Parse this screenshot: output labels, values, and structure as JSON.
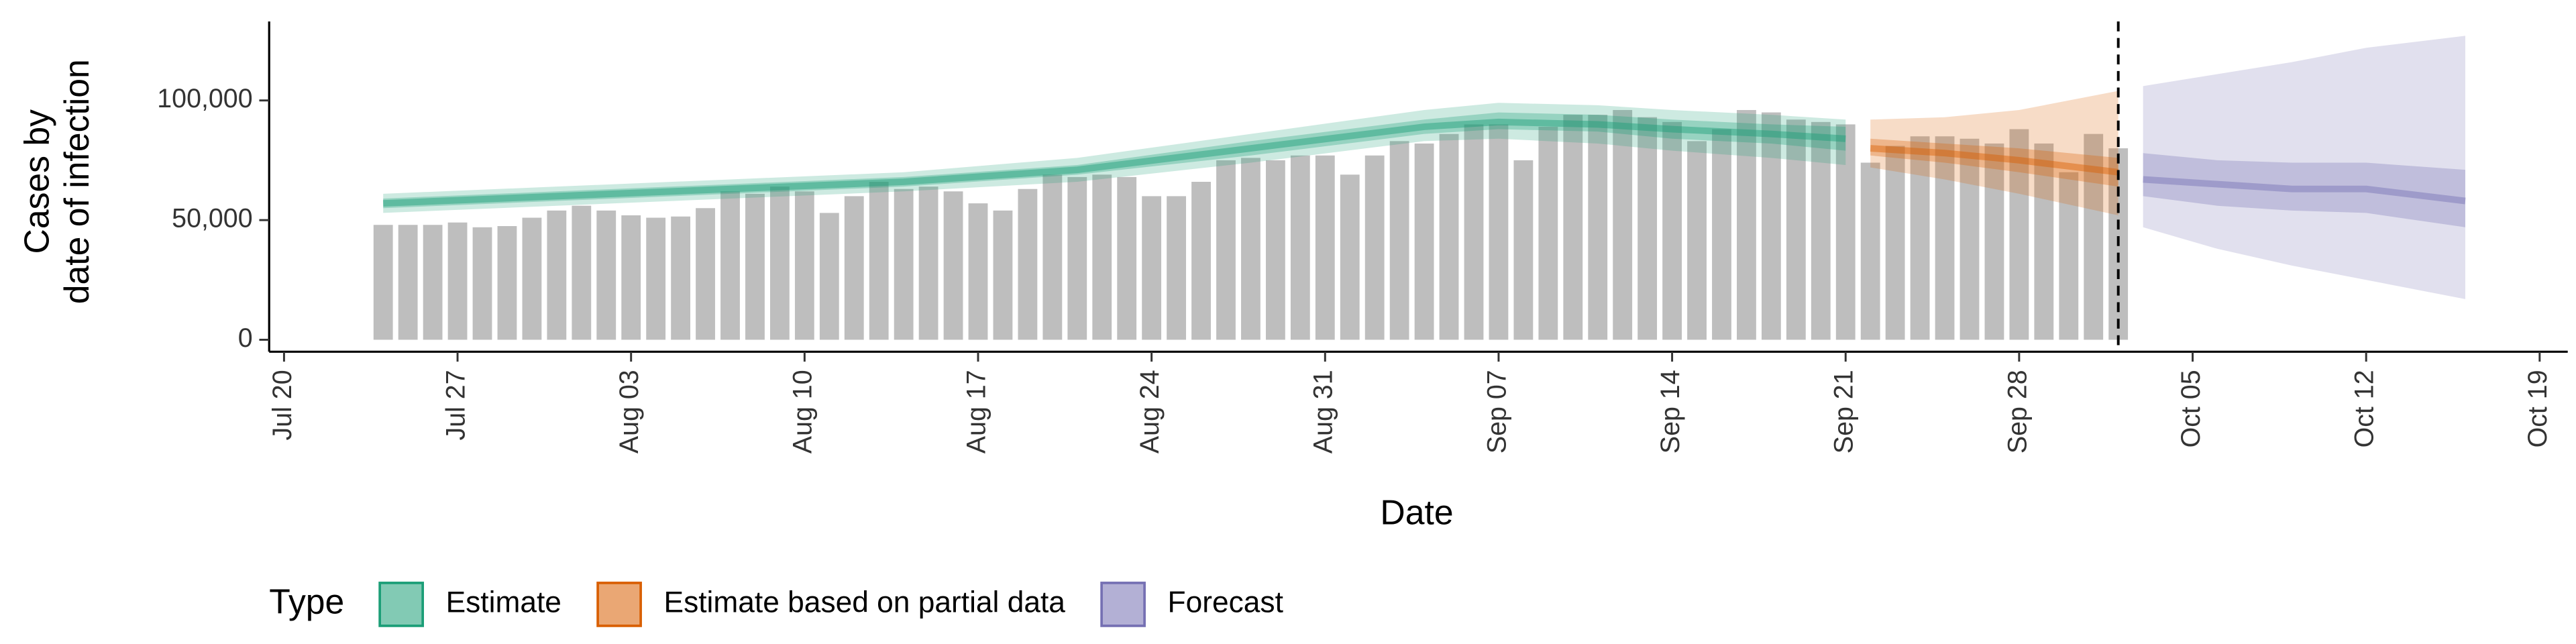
{
  "chart_data": {
    "type": "bar",
    "ylabel": [
      "Cases by",
      "date of infection"
    ],
    "xlabel": "Date",
    "legend_title": "Type",
    "xlim": [
      "Jul 19",
      "Oct 20"
    ],
    "xticks": [
      "Jul 20",
      "Jul 27",
      "Aug 03",
      "Aug 10",
      "Aug 17",
      "Aug 24",
      "Aug 31",
      "Sep 07",
      "Sep 14",
      "Sep 21",
      "Sep 28",
      "Oct 05",
      "Oct 12",
      "Oct 19"
    ],
    "ylim": [
      -5000,
      133000
    ],
    "yticks": [
      {
        "value": 0,
        "label": "0"
      },
      {
        "value": 50000,
        "label": "50,000"
      },
      {
        "value": 100000,
        "label": "100,000"
      }
    ],
    "reference_line": "Oct 02",
    "bars": {
      "color": "#bebebe",
      "x": [
        "Jul 24",
        "Jul 25",
        "Jul 26",
        "Jul 27",
        "Jul 28",
        "Jul 29",
        "Jul 30",
        "Jul 31",
        "Aug 01",
        "Aug 02",
        "Aug 03",
        "Aug 04",
        "Aug 05",
        "Aug 06",
        "Aug 07",
        "Aug 08",
        "Aug 09",
        "Aug 10",
        "Aug 11",
        "Aug 12",
        "Aug 13",
        "Aug 14",
        "Aug 15",
        "Aug 16",
        "Aug 17",
        "Aug 18",
        "Aug 19",
        "Aug 20",
        "Aug 21",
        "Aug 22",
        "Aug 23",
        "Aug 24",
        "Aug 25",
        "Aug 26",
        "Aug 27",
        "Aug 28",
        "Aug 29",
        "Aug 30",
        "Aug 31",
        "Sep 01",
        "Sep 02",
        "Sep 03",
        "Sep 04",
        "Sep 05",
        "Sep 06",
        "Sep 07",
        "Sep 08",
        "Sep 09",
        "Sep 10",
        "Sep 11",
        "Sep 12",
        "Sep 13",
        "Sep 14",
        "Sep 15",
        "Sep 16",
        "Sep 17",
        "Sep 18",
        "Sep 19",
        "Sep 20",
        "Sep 21",
        "Sep 22",
        "Sep 23",
        "Sep 24",
        "Sep 25",
        "Sep 26",
        "Sep 27",
        "Sep 28",
        "Sep 29",
        "Sep 30",
        "Oct 01",
        "Oct 02"
      ],
      "values": [
        48000,
        48000,
        48000,
        49000,
        47000,
        47500,
        51000,
        54000,
        56000,
        54000,
        52000,
        51000,
        51500,
        55000,
        62000,
        61000,
        64000,
        62000,
        53000,
        60000,
        66000,
        63000,
        64000,
        62000,
        57000,
        54000,
        63000,
        69000,
        68000,
        69000,
        68000,
        60000,
        60000,
        66000,
        75000,
        76000,
        75000,
        77000,
        77000,
        69000,
        77000,
        83000,
        82000,
        86000,
        90000,
        90000,
        75000,
        89000,
        94000,
        94000,
        96000,
        93000,
        91000,
        83000,
        88000,
        96000,
        95000,
        92000,
        91000,
        90000,
        74000,
        81000,
        85000,
        85000,
        84000,
        82000,
        88000,
        82000,
        70000,
        86000,
        80000
      ]
    },
    "series": [
      {
        "name": "Estimate",
        "color": "#1b9e77",
        "x": [
          "Jul 24",
          "Jul 31",
          "Aug 07",
          "Aug 14",
          "Aug 21",
          "Aug 28",
          "Sep 04",
          "Sep 07",
          "Sep 11",
          "Sep 14",
          "Sep 18",
          "Sep 21"
        ],
        "median": [
          57000,
          60000,
          63000,
          66000,
          71000,
          80000,
          89000,
          91000,
          90000,
          88000,
          86000,
          84000
        ],
        "lower": [
          53000,
          56000,
          59000,
          62000,
          66000,
          74000,
          83000,
          84000,
          82000,
          79000,
          76000,
          73000
        ],
        "upper": [
          61000,
          64000,
          67000,
          70000,
          76000,
          86000,
          96000,
          99000,
          98000,
          96000,
          94000,
          92000
        ],
        "lower_inner": [
          55000,
          58000,
          61000,
          64000,
          69000,
          77000,
          86000,
          88000,
          87000,
          84000,
          82000,
          79000
        ],
        "upper_inner": [
          59000,
          62000,
          65000,
          68000,
          73000,
          83000,
          92000,
          95000,
          94000,
          92000,
          90000,
          89000
        ]
      },
      {
        "name": "Estimate based on partial data",
        "color": "#d95f02",
        "x": [
          "Sep 22",
          "Sep 25",
          "Sep 28",
          "Oct 02"
        ],
        "median": [
          80000,
          78000,
          75000,
          70000
        ],
        "lower": [
          72000,
          67000,
          61000,
          52000
        ],
        "upper": [
          92000,
          93000,
          96000,
          104000
        ],
        "lower_inner": [
          77000,
          74000,
          70000,
          64000
        ],
        "upper_inner": [
          84000,
          82000,
          80000,
          76000
        ]
      },
      {
        "name": "Forecast",
        "color": "#7570b3",
        "x": [
          "Oct 03",
          "Oct 06",
          "Oct 09",
          "Oct 12",
          "Oct 16"
        ],
        "median": [
          67000,
          65000,
          63000,
          63000,
          58000
        ],
        "lower": [
          47000,
          38000,
          31000,
          25000,
          17000
        ],
        "upper": [
          106000,
          111000,
          116000,
          122000,
          127000
        ],
        "lower_inner": [
          60000,
          56000,
          54000,
          53000,
          47000
        ],
        "upper_inner": [
          78000,
          75000,
          74000,
          74000,
          71000
        ]
      }
    ]
  }
}
